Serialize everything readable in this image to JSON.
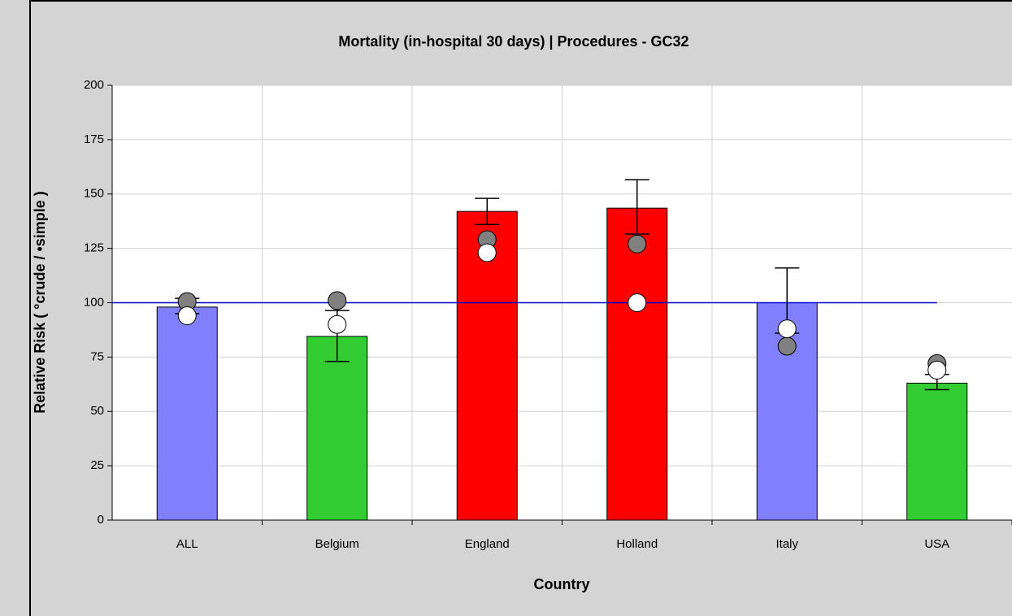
{
  "chart_data": {
    "type": "bar",
    "title": "Mortality (in-hospital 30 days) | Procedures - GC32",
    "x_label": "Country",
    "y_label": "Relative Risk ( °crude / •simple )",
    "categories": [
      "ALL",
      "Belgium",
      "England",
      "Holland",
      "Italy",
      "USA"
    ],
    "values": [
      98,
      84.5,
      142,
      143.5,
      100,
      63
    ],
    "colors": [
      "#8080ff",
      "#33cc33",
      "#ff0000",
      "#ff0000",
      "#8080ff",
      "#33cc33"
    ],
    "error_lower": [
      95,
      73,
      136,
      131.6,
      86,
      60
    ],
    "error_upper": [
      102,
      96.4,
      148,
      156.6,
      116,
      67
    ],
    "crude": [
      94,
      90,
      123,
      100,
      88,
      69
    ],
    "simple": [
      100.5,
      101,
      129,
      127,
      80,
      72
    ],
    "crude_color": "#ffffff",
    "simple_color": "#808080",
    "reference_line": 100,
    "reference_color": "#0000cc",
    "ylim": [
      0,
      200
    ],
    "yticks": [
      0,
      25,
      50,
      75,
      100,
      125,
      150,
      175,
      200
    ],
    "grid": true
  }
}
